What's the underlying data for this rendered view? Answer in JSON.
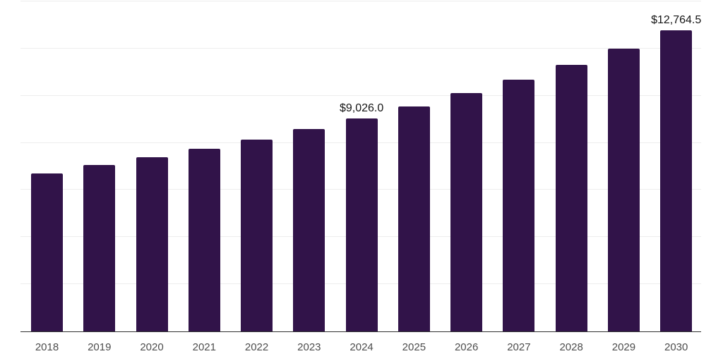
{
  "chart_data": {
    "type": "bar",
    "title": "",
    "xlabel": "",
    "ylabel": "",
    "categories": [
      "2018",
      "2019",
      "2020",
      "2021",
      "2022",
      "2023",
      "2024",
      "2025",
      "2026",
      "2027",
      "2028",
      "2029",
      "2030"
    ],
    "values": [
      6710,
      7055,
      7385,
      7755,
      8125,
      8575,
      9026.0,
      9535,
      10100,
      10680,
      11320,
      12005,
      12764.5
    ],
    "data_labels": {
      "2024": "$9,026.0",
      "2030": "$12,764.5"
    },
    "ylim": [
      0,
      14000
    ],
    "gridline_step": 2000,
    "grid": true,
    "legend": "none",
    "y_axis_tick_labels": "none",
    "colors": {
      "bar": "#311349",
      "gridline": "#ededed",
      "axis": "#2f2f2f",
      "x_tick_label": "#4d4d4d",
      "data_label": "#141414",
      "background": "#ffffff"
    }
  }
}
